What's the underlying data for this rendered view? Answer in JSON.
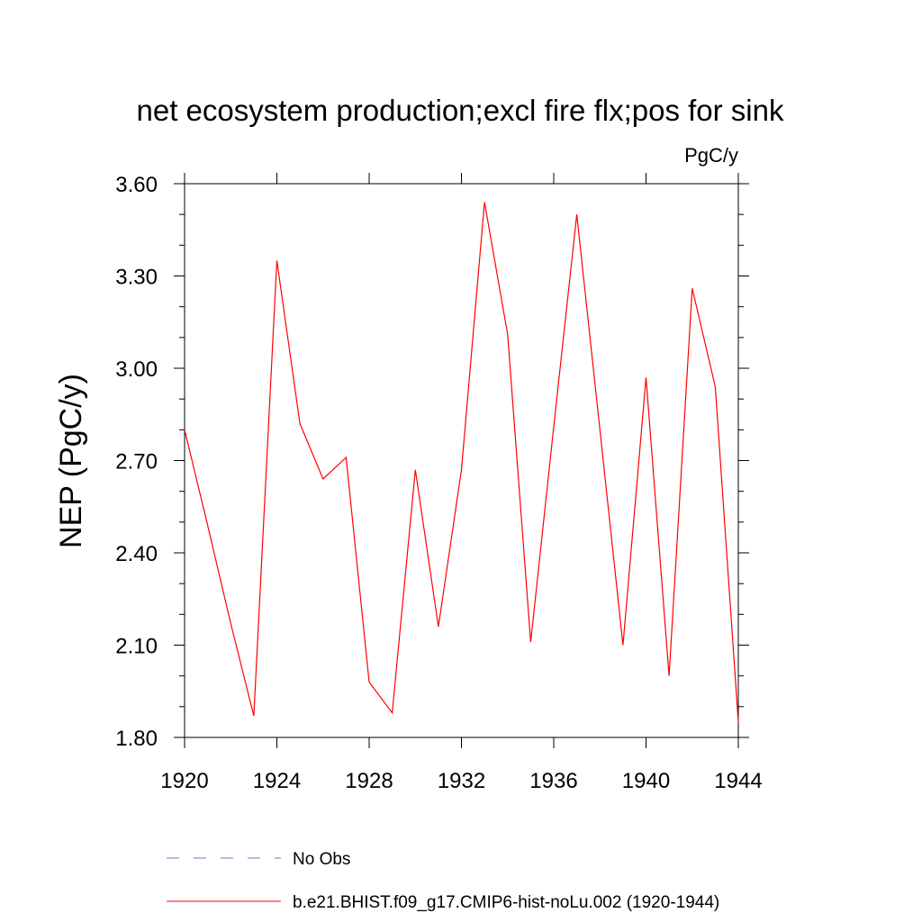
{
  "chart_data": {
    "type": "line",
    "title": "net ecosystem production;excl fire flx;pos for sink",
    "units": "PgC/y",
    "ylabel": "NEP  (PgC/y)",
    "xlabel": "",
    "xlim": [
      1920,
      1944
    ],
    "ylim": [
      1.8,
      3.6
    ],
    "x_ticks": [
      1920,
      1924,
      1928,
      1932,
      1936,
      1940,
      1944
    ],
    "x_tick_labels": [
      "1920",
      "1924",
      "1928",
      "1932",
      "1936",
      "1940",
      "1944"
    ],
    "y_ticks": [
      1.8,
      2.1,
      2.4,
      2.7,
      3.0,
      3.3,
      3.6
    ],
    "y_tick_labels": [
      "1.80",
      "2.10",
      "2.40",
      "2.70",
      "3.00",
      "3.30",
      "3.60"
    ],
    "grid": false,
    "legend_position": "bottom",
    "series": [
      {
        "name": "b.e21.BHIST.f09_g17.CMIP6-hist-noLu.002 (1920-1944)",
        "color": "#ff0000",
        "style": "solid",
        "x": [
          1920,
          1921,
          1922,
          1923,
          1924,
          1925,
          1926,
          1927,
          1928,
          1929,
          1930,
          1931,
          1932,
          1933,
          1934,
          1935,
          1936,
          1937,
          1938,
          1939,
          1940,
          1941,
          1942,
          1943,
          1944
        ],
        "y": [
          2.8,
          2.49,
          2.17,
          1.87,
          3.35,
          2.82,
          2.64,
          2.71,
          1.98,
          1.88,
          2.67,
          2.16,
          2.67,
          3.54,
          3.11,
          2.11,
          2.81,
          3.5,
          2.8,
          2.1,
          2.97,
          2.0,
          3.26,
          2.94,
          1.85
        ]
      }
    ],
    "legend": [
      {
        "label": "No Obs",
        "color": "#7b72c4",
        "style": "dashed"
      },
      {
        "label": "b.e21.BHIST.f09_g17.CMIP6-hist-noLu.002 (1920-1944)",
        "color": "#ff0000",
        "style": "solid"
      }
    ]
  }
}
